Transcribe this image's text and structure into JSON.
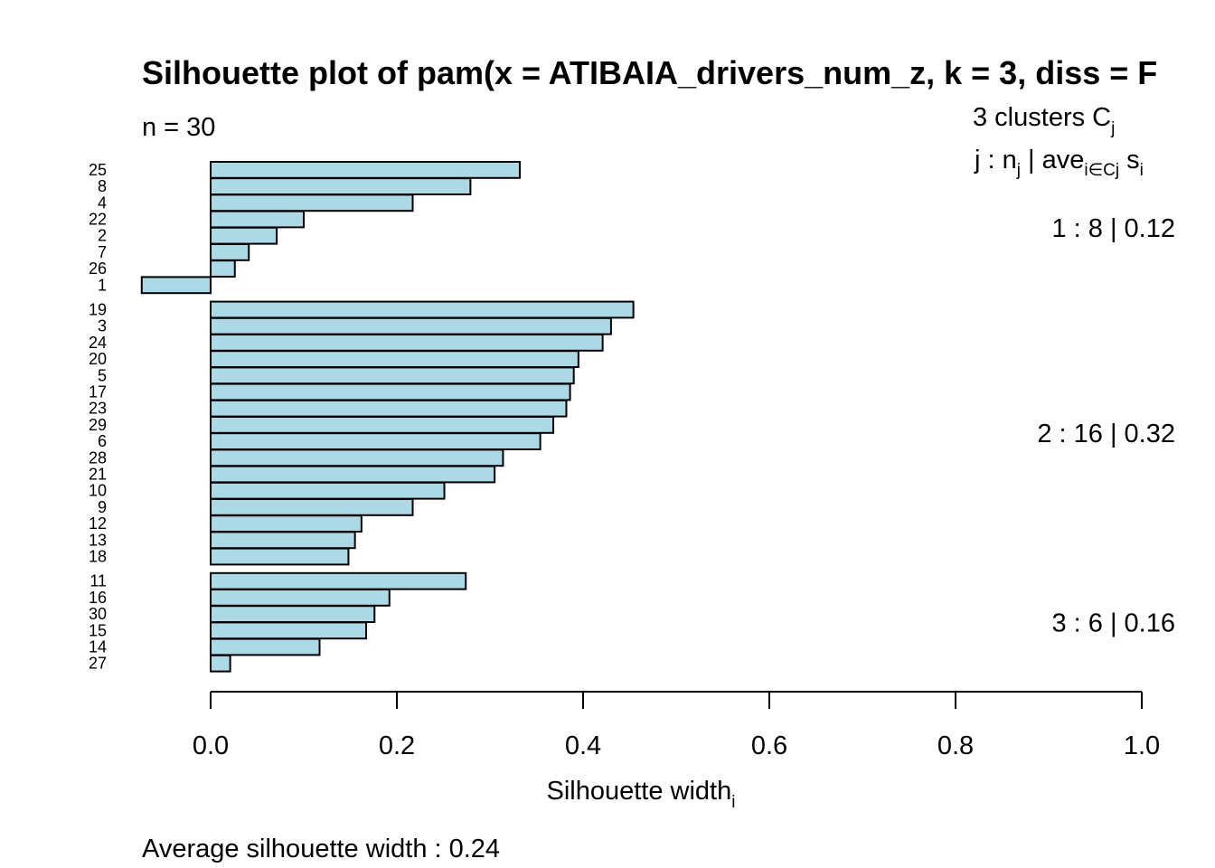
{
  "chart_data": {
    "type": "bar",
    "orientation": "horizontal",
    "title": "Silhouette plot of pam(x = ATIBAIA_drivers_num_z, k = 3, diss = F",
    "subtitle": "n = 30",
    "xlabel": "Silhouette width",
    "xlabel_subscript": "i",
    "xlim": [
      0.0,
      1.0
    ],
    "x_ticks": [
      "0.0",
      "0.2",
      "0.4",
      "0.6",
      "0.8",
      "1.0"
    ],
    "bar_color": "#add8e6",
    "legend_header": {
      "line1_prefix": "3  clusters  C",
      "line1_sub": "j",
      "line2_a": "j :  n",
      "line2_a_sub": "j",
      "line2_b": " | ave",
      "line2_b_sub": "i∈Cj",
      "line2_c": "  s",
      "line2_c_sub": "i"
    },
    "clusters": [
      {
        "summary": "1 :   8  |  0.12",
        "labels": [
          "25",
          "8",
          "4",
          "22",
          "2",
          "7",
          "26",
          "1"
        ],
        "values": [
          0.332,
          0.279,
          0.217,
          0.1,
          0.071,
          0.041,
          0.026,
          -0.074
        ]
      },
      {
        "summary": "2 :   16  |  0.32",
        "labels": [
          "19",
          "3",
          "24",
          "20",
          "5",
          "17",
          "23",
          "29",
          "6",
          "28",
          "21",
          "10",
          "9",
          "12",
          "13",
          "18"
        ],
        "values": [
          0.454,
          0.43,
          0.421,
          0.395,
          0.39,
          0.386,
          0.382,
          0.368,
          0.354,
          0.314,
          0.305,
          0.251,
          0.217,
          0.162,
          0.155,
          0.148
        ]
      },
      {
        "summary": "3 :   6  |  0.16",
        "labels": [
          "11",
          "16",
          "30",
          "15",
          "14",
          "27"
        ],
        "values": [
          0.274,
          0.192,
          0.176,
          0.167,
          0.117,
          0.021
        ]
      }
    ],
    "average_text": "Average silhouette width :  0.24"
  }
}
